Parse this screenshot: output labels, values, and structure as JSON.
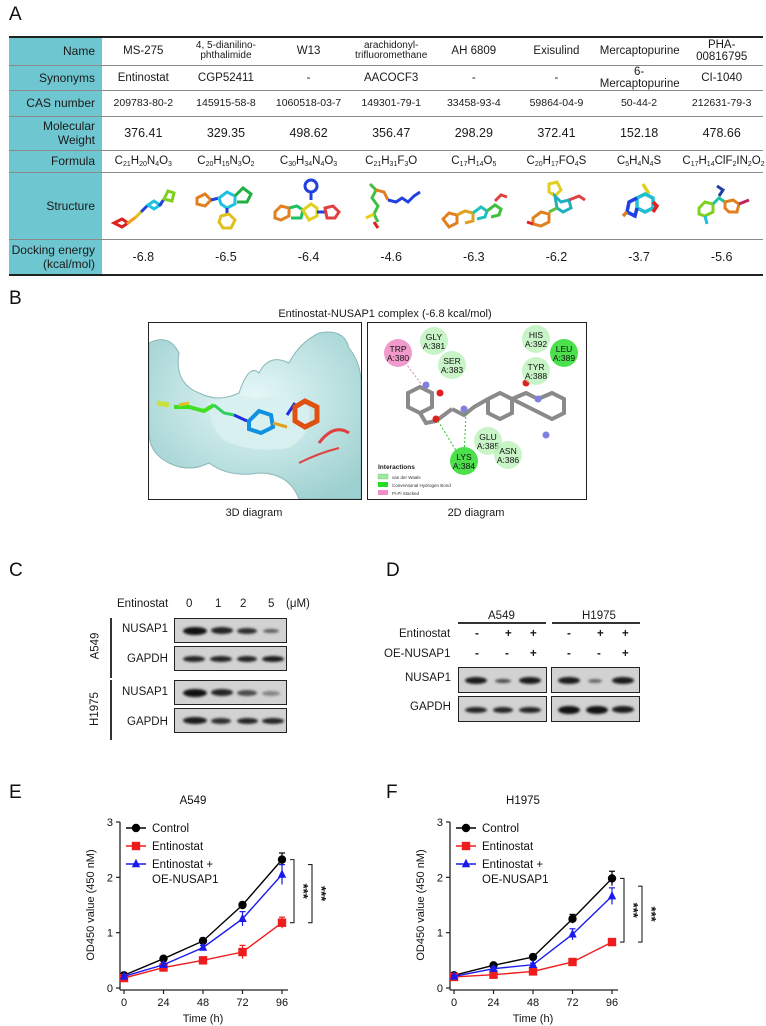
{
  "panels": {
    "A": "A",
    "B": "B",
    "C": "C",
    "D": "D",
    "E": "E",
    "F": "F"
  },
  "table": {
    "row_headers": {
      "name": "Name",
      "synonyms": "Synonyms",
      "cas": "CAS number",
      "mw_line1": "Molecular",
      "mw_line2": "Weight",
      "formula": "Formula",
      "structure": "Structure",
      "energy_line1": "Docking energy",
      "energy_line2": "(kcal/mol)"
    },
    "compounds": [
      {
        "name": "MS-275",
        "synonym": "Entinostat",
        "cas": "209783-80-2",
        "mw": "376.41",
        "formula": [
          [
            "C",
            "21"
          ],
          [
            "H",
            "20"
          ],
          [
            "N",
            "4"
          ],
          [
            "O",
            "3"
          ]
        ],
        "energy": "-6.8"
      },
      {
        "name": "4, 5-dianilino-phthalimide",
        "name_l1": "4, 5-dianilino-",
        "name_l2": "phthalimide",
        "synonym": "CGP52411",
        "cas": "145915-58-8",
        "mw": "329.35",
        "formula": [
          [
            "C",
            "20"
          ],
          [
            "H",
            "15"
          ],
          [
            "N",
            "3"
          ],
          [
            "O",
            "2"
          ]
        ],
        "energy": "-6.5"
      },
      {
        "name": "W13",
        "synonym": "-",
        "cas": "1060518-03-7",
        "mw": "498.62",
        "formula": [
          [
            "C",
            "30"
          ],
          [
            "H",
            "34"
          ],
          [
            "N",
            "4"
          ],
          [
            "O",
            "3"
          ]
        ],
        "energy": "-6.4"
      },
      {
        "name": "arachidonyl-trifluoromethane",
        "name_l1": "arachidonyl-",
        "name_l2": "trifluoromethane",
        "synonym": "AACOCF3",
        "cas": "149301-79-1",
        "mw": "356.47",
        "formula": [
          [
            "C",
            "21"
          ],
          [
            "H",
            "31"
          ],
          [
            "F",
            "3"
          ],
          [
            "O",
            ""
          ]
        ],
        "energy": "-4.6"
      },
      {
        "name": "AH 6809",
        "synonym": "-",
        "cas": "33458-93-4",
        "mw": "298.29",
        "formula": [
          [
            "C",
            "17"
          ],
          [
            "H",
            "14"
          ],
          [
            "O",
            "5"
          ]
        ],
        "energy": "-6.3"
      },
      {
        "name": "Exisulind",
        "synonym": "-",
        "cas": "59864-04-9",
        "mw": "372.41",
        "formula": [
          [
            "C",
            "20"
          ],
          [
            "H",
            "17"
          ],
          [
            "FO",
            "4"
          ],
          [
            "S",
            ""
          ]
        ],
        "energy": "-6.2"
      },
      {
        "name": "Mercaptopurine",
        "synonym": "6-Mercaptopurine",
        "cas": "50-44-2",
        "mw": "152.18",
        "formula": [
          [
            "C",
            "5"
          ],
          [
            "H",
            "4"
          ],
          [
            "N",
            "4"
          ],
          [
            "S",
            ""
          ]
        ],
        "energy": "-3.7"
      },
      {
        "name": "PHA-00816795",
        "synonym": "CI-1040",
        "cas": "212631-79-3",
        "mw": "478.66",
        "formula": [
          [
            "C",
            "17"
          ],
          [
            "H",
            "14"
          ],
          [
            "ClF",
            "2"
          ],
          [
            "IN",
            "2"
          ],
          [
            "O",
            "2"
          ]
        ],
        "energy": "-5.6"
      }
    ],
    "header_color": "#6ec6d0"
  },
  "docking": {
    "title": "Entinostat-NUSAP1 complex (-6.8 kcal/mol)",
    "caption_3d": "3D diagram",
    "caption_2d": "2D diagram",
    "residues": [
      {
        "name": "TRP",
        "id": "A:380",
        "type": "pi"
      },
      {
        "name": "GLY",
        "id": "A:381",
        "type": "vdw"
      },
      {
        "name": "SER",
        "id": "A:383",
        "type": "vdw"
      },
      {
        "name": "HIS",
        "id": "A:392",
        "type": "vdw"
      },
      {
        "name": "LEU",
        "id": "A:389",
        "type": "hbond"
      },
      {
        "name": "TYR",
        "id": "A:388",
        "type": "vdw"
      },
      {
        "name": "GLU",
        "id": "A:385",
        "type": "vdw"
      },
      {
        "name": "ASN",
        "id": "A:386",
        "type": "vdw"
      },
      {
        "name": "LYS",
        "id": "A:384",
        "type": "hbond"
      }
    ],
    "legend": {
      "title": "Interactions",
      "items": [
        {
          "label": "van der Waals",
          "color": "#9ee89e"
        },
        {
          "label": "Conventional Hydrogen Bond",
          "color": "#22dd22"
        },
        {
          "label": "Pi-Pi Stacked",
          "color": "#f08cc8"
        }
      ]
    }
  },
  "western_c": {
    "treatment": "Entinostat",
    "doses": [
      "0",
      "1",
      "2",
      "5"
    ],
    "unit": "(μM)",
    "cell_lines": [
      "A549",
      "H1975"
    ],
    "proteins": [
      "NUSAP1",
      "GAPDH"
    ],
    "band_intensity": {
      "A549_NUSAP1": [
        1.0,
        0.85,
        0.7,
        0.35
      ],
      "A549_GAPDH": [
        0.85,
        0.85,
        0.85,
        0.9
      ],
      "H1975_NUSAP1": [
        1.0,
        0.85,
        0.6,
        0.3
      ],
      "H1975_GAPDH": [
        0.9,
        0.8,
        0.85,
        0.85
      ]
    }
  },
  "western_d": {
    "cell_lines": [
      "A549",
      "H1975"
    ],
    "row_labels": [
      "Entinostat",
      "OE-NUSAP1"
    ],
    "entinostat": [
      "-",
      "+",
      "+",
      "-",
      "+",
      "+"
    ],
    "oe_nusap1": [
      "-",
      "-",
      "+",
      "-",
      "-",
      "+"
    ],
    "proteins": [
      "NUSAP1",
      "GAPDH"
    ],
    "band_intensity": {
      "NUSAP1": [
        0.9,
        0.5,
        0.9,
        0.9,
        0.4,
        0.9
      ],
      "GAPDH": [
        0.85,
        0.85,
        0.85,
        0.95,
        0.95,
        0.9
      ]
    }
  },
  "chart_data": [
    {
      "type": "line",
      "title": "A549",
      "xlabel": "Time (h)",
      "ylabel": "OD450 value (450 nM)",
      "x": [
        0,
        24,
        48,
        72,
        96
      ],
      "xticks": [
        "0",
        "24",
        "48",
        "72",
        "96"
      ],
      "yticks": [
        "0",
        "1",
        "2",
        "3"
      ],
      "ylim": [
        0,
        3
      ],
      "legend_position": "upper left",
      "series": [
        {
          "name": "Control",
          "color": "#000000",
          "marker": "circle",
          "values": [
            0.23,
            0.53,
            0.85,
            1.5,
            2.32
          ],
          "errors": [
            0.03,
            0.03,
            0.05,
            0.05,
            0.12
          ]
        },
        {
          "name": "Entinostat",
          "color": "#ee1c1c",
          "marker": "square",
          "values": [
            0.18,
            0.37,
            0.5,
            0.65,
            1.18
          ],
          "errors": [
            0.03,
            0.04,
            0.04,
            0.12,
            0.1
          ]
        },
        {
          "name": "Entinostat + OE-NUSAP1",
          "legend_l1": "Entinostat +",
          "legend_l2": "OE-NUSAP1",
          "color": "#1a1aee",
          "marker": "triangle",
          "values": [
            0.21,
            0.42,
            0.73,
            1.25,
            2.05
          ],
          "errors": [
            0.02,
            0.03,
            0.04,
            0.13,
            0.18
          ]
        }
      ],
      "annotations": [
        "***",
        "***"
      ]
    },
    {
      "type": "line",
      "title": "H1975",
      "xlabel": "Time (h)",
      "ylabel": "OD450 value (450 nM)",
      "x": [
        0,
        24,
        48,
        72,
        96
      ],
      "xticks": [
        "0",
        "24",
        "48",
        "72",
        "96"
      ],
      "yticks": [
        "0",
        "1",
        "2",
        "3"
      ],
      "ylim": [
        0,
        3
      ],
      "legend_position": "upper left",
      "series": [
        {
          "name": "Control",
          "color": "#000000",
          "marker": "circle",
          "values": [
            0.23,
            0.41,
            0.56,
            1.25,
            1.98
          ],
          "errors": [
            0.02,
            0.03,
            0.05,
            0.08,
            0.13
          ]
        },
        {
          "name": "Entinostat",
          "color": "#ee1c1c",
          "marker": "square",
          "values": [
            0.2,
            0.24,
            0.3,
            0.47,
            0.83
          ],
          "errors": [
            0.02,
            0.03,
            0.03,
            0.04,
            0.06
          ]
        },
        {
          "name": "Entinostat + OE-NUSAP1",
          "legend_l1": "Entinostat +",
          "legend_l2": "OE-NUSAP1",
          "color": "#1a1aee",
          "marker": "triangle",
          "values": [
            0.21,
            0.35,
            0.42,
            0.97,
            1.66
          ],
          "errors": [
            0.02,
            0.03,
            0.03,
            0.1,
            0.15
          ]
        }
      ],
      "annotations": [
        "***",
        "***"
      ]
    }
  ]
}
